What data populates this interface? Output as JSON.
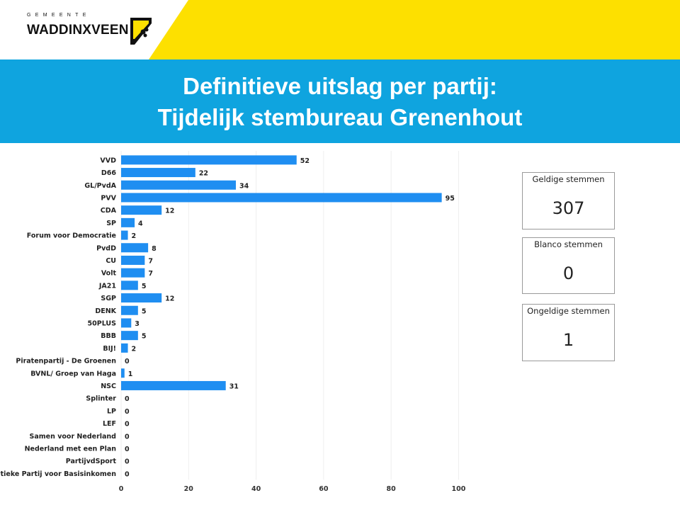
{
  "header": {
    "logo_small": "GEMEENTE",
    "logo_main": "WADDINXVEEN",
    "title_line1": "Definitieve uitslag per partij:",
    "title_line2": "Tijdelijk stembureau Grenenhout"
  },
  "colors": {
    "yellow": "#fde000",
    "blue_band": "#0fa4df",
    "bar": "#1f8ef1"
  },
  "cards": [
    {
      "label": "Geldige stemmen",
      "value": "307"
    },
    {
      "label": "Blanco stemmen",
      "value": "0"
    },
    {
      "label": "Ongeldige stemmen",
      "value": "1"
    }
  ],
  "chart_data": {
    "type": "bar",
    "orientation": "horizontal",
    "categories": [
      "VVD",
      "D66",
      "GL/PvdA",
      "PVV",
      "CDA",
      "SP",
      "Forum voor Democratie",
      "PvdD",
      "CU",
      "Volt",
      "JA21",
      "SGP",
      "DENK",
      "50PLUS",
      "BBB",
      "BIJ!",
      "Piratenpartij - De Groenen",
      "BVNL/ Groep van Haga",
      "NSC",
      "Splinter",
      "LP",
      "LEF",
      "Samen voor Nederland",
      "Nederland met een Plan",
      "PartijvdSport",
      "Politieke Partij voor Basisinkomen"
    ],
    "values": [
      52,
      22,
      34,
      95,
      12,
      4,
      2,
      8,
      7,
      7,
      5,
      12,
      5,
      3,
      5,
      2,
      0,
      1,
      31,
      0,
      0,
      0,
      0,
      0,
      0,
      0
    ],
    "xlim": [
      0,
      140
    ],
    "xticks": [
      0,
      20,
      40,
      60,
      80,
      100,
      120,
      140
    ],
    "grid": true,
    "legend": "none"
  }
}
